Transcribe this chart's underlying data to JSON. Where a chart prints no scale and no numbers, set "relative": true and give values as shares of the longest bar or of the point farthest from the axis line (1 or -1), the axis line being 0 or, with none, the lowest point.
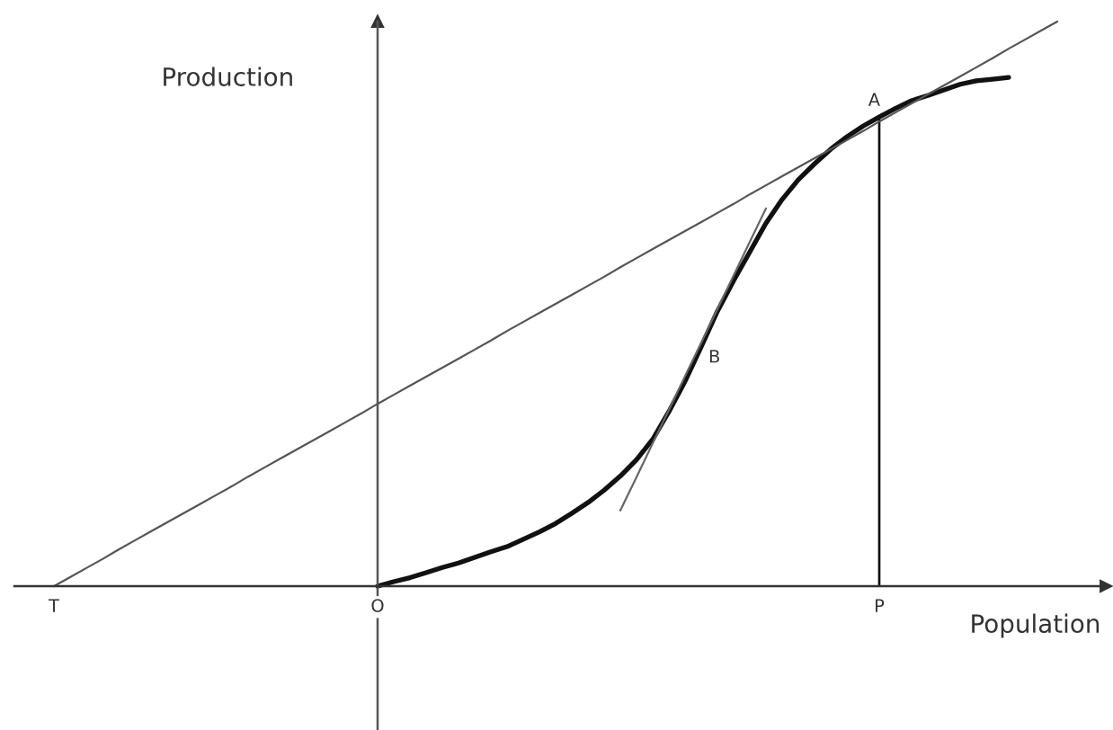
{
  "chart_data": {
    "type": "line",
    "relative": true,
    "xlabel": "Population",
    "ylabel": "Production",
    "line_style": "solid",
    "categories": [
      "T",
      null,
      null,
      null,
      null,
      null,
      null,
      null,
      null,
      null,
      null,
      null,
      null,
      null,
      null,
      null,
      null,
      null,
      null,
      null,
      "O",
      null,
      null,
      null,
      null,
      null,
      null,
      null,
      null,
      null,
      null,
      null,
      null,
      null,
      null,
      null,
      null,
      null,
      null,
      null,
      null,
      null,
      null,
      null,
      null,
      null,
      null,
      null,
      null,
      null,
      null,
      "P",
      null,
      null,
      null,
      null,
      null,
      null,
      null,
      null,
      null,
      null,
      null
    ],
    "series": [
      {
        "color": "#111111",
        "values": [
          null,
          null,
          null,
          null,
          null,
          null,
          null,
          null,
          null,
          null,
          null,
          null,
          null,
          null,
          null,
          null,
          null,
          null,
          null,
          null,
          0,
          0.008,
          0.015,
          0.024,
          0.033,
          0.041,
          0.051,
          0.061,
          0.07,
          0.083,
          0.096,
          0.111,
          0.129,
          0.148,
          0.17,
          0.195,
          0.224,
          0.26,
          0.309,
          0.363,
          0.424,
          0.487,
          0.541,
          0.592,
          0.643,
          0.685,
          0.72,
          0.748,
          0.774,
          0.796,
          0.815,
          0.831,
          0.846,
          0.86,
          0.869,
          0.879,
          0.889,
          0.895,
          0.898,
          0.901,
          null,
          null,
          null
        ]
      },
      {
        "color": "#555555",
        "values": [
          0,
          0.016,
          0.032,
          0.048,
          0.065,
          0.081,
          0.097,
          0.113,
          0.129,
          0.145,
          0.161,
          0.177,
          0.194,
          0.21,
          0.226,
          0.242,
          0.258,
          0.274,
          0.29,
          0.306,
          0.323,
          0.339,
          0.355,
          0.371,
          0.387,
          0.403,
          0.419,
          0.435,
          0.452,
          0.468,
          0.484,
          0.5,
          0.516,
          0.532,
          0.548,
          0.565,
          0.581,
          0.597,
          0.613,
          0.629,
          0.645,
          0.661,
          0.677,
          0.694,
          0.71,
          0.726,
          0.742,
          0.758,
          0.774,
          0.79,
          0.806,
          0.823,
          0.839,
          0.855,
          0.871,
          0.887,
          0.903,
          0.919,
          0.935,
          0.952,
          0.968,
          0.984,
          1.0
        ]
      },
      {
        "color": "#666666",
        "values": [
          null,
          null,
          null,
          null,
          null,
          null,
          null,
          null,
          null,
          null,
          null,
          null,
          null,
          null,
          null,
          null,
          null,
          null,
          null,
          null,
          null,
          null,
          null,
          null,
          null,
          null,
          null,
          null,
          null,
          null,
          null,
          null,
          null,
          null,
          null,
          0.134,
          0.193,
          0.253,
          0.312,
          0.372,
          0.431,
          0.491,
          0.55,
          0.61,
          0.669,
          null,
          null,
          null,
          null,
          null,
          null,
          null,
          null,
          null,
          null,
          null,
          null,
          null,
          null,
          null,
          null,
          null,
          null
        ]
      },
      {
        "type": "bar",
        "color": "#111111",
        "values": [
          null,
          null,
          null,
          null,
          null,
          null,
          null,
          null,
          null,
          null,
          null,
          null,
          null,
          null,
          null,
          null,
          null,
          null,
          null,
          null,
          null,
          null,
          null,
          null,
          null,
          null,
          null,
          null,
          null,
          null,
          null,
          null,
          null,
          null,
          null,
          null,
          null,
          null,
          null,
          null,
          null,
          null,
          null,
          null,
          null,
          null,
          null,
          null,
          null,
          null,
          null,
          0.831,
          null,
          null,
          null,
          null,
          null,
          null,
          null,
          null,
          null,
          null,
          null
        ]
      }
    ],
    "annotations": [
      {
        "text": "A",
        "x": "P",
        "y": 0.831
      },
      "B"
    ]
  }
}
